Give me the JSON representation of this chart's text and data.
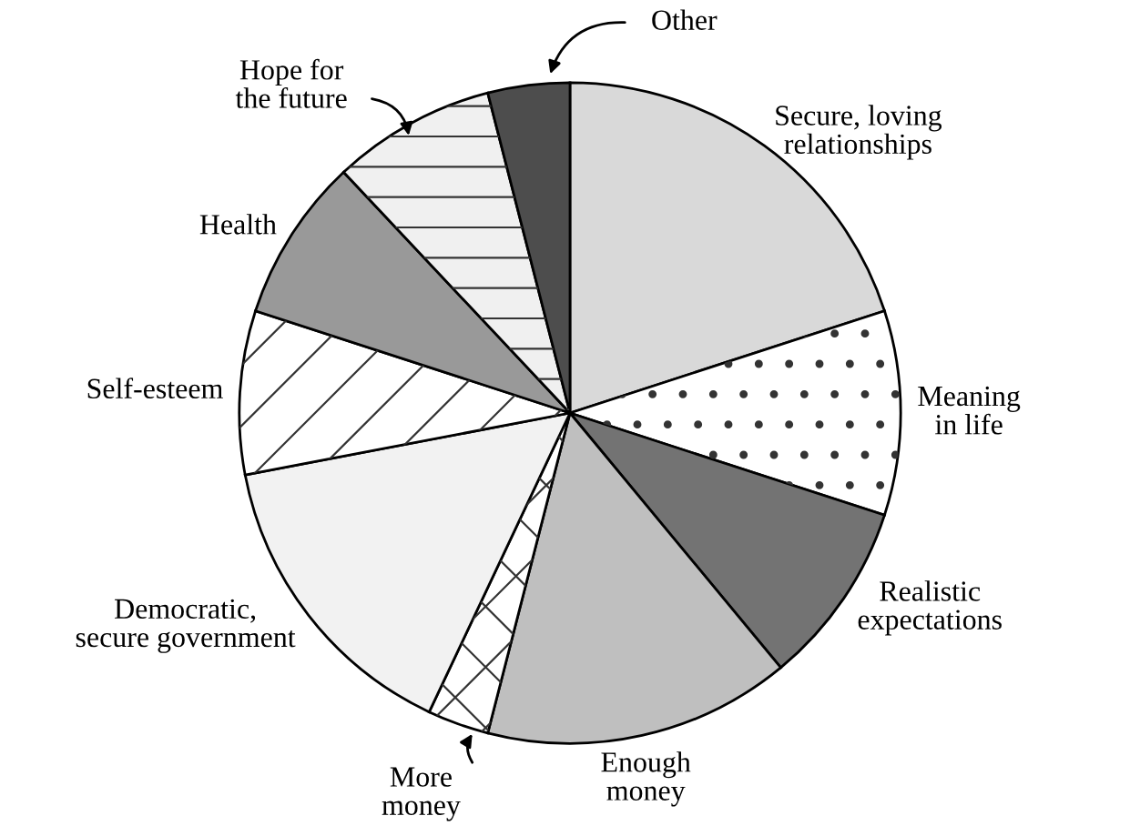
{
  "chart_data": {
    "type": "pie",
    "categories": [
      "Secure, loving\nrelationships",
      "Meaning\nin life",
      "Realistic\nexpectations",
      "Enough\nmoney",
      "More\nmoney",
      "Democratic,\nsecure government",
      "Self-esteem",
      "Health",
      "Hope for\nthe future",
      "Other"
    ],
    "values": [
      20,
      10,
      9,
      15,
      3,
      15,
      8,
      8,
      8,
      4
    ],
    "colors": [
      "#d9d9d9",
      "#ffffff",
      "#737373",
      "#bfbfbf",
      "#ffffff",
      "#f2f2f2",
      "#ffffff",
      "#999999",
      "#f0f0f0",
      "#4d4d4d"
    ]
  }
}
